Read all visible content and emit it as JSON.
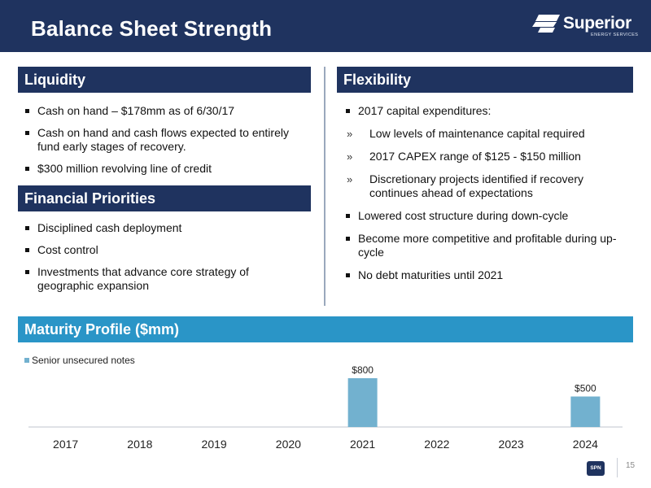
{
  "slide": {
    "title": "Balance Sheet Strength",
    "page_number": "15"
  },
  "logo": {
    "brand": "Superior",
    "tagline": "ENERGY SERVICES",
    "footer_mark": "SPN"
  },
  "colors": {
    "navy": "#1f335f",
    "accent_blue": "#2a95c7",
    "bar": "#72b1cf"
  },
  "liquidity": {
    "heading": "Liquidity",
    "items": [
      "Cash on hand – $178mm as of 6/30/17",
      "Cash on hand and cash flows expected to entirely fund early stages of recovery.",
      "$300 million revolving line of credit"
    ]
  },
  "priorities": {
    "heading": "Financial Priorities",
    "items": [
      "Disciplined cash deployment",
      "Cost control",
      "Investments that advance core strategy of geographic expansion"
    ]
  },
  "flexibility": {
    "heading": "Flexibility",
    "items": [
      "2017 capital expenditures:",
      "Low levels of maintenance capital required",
      "2017 CAPEX range of $125 - $150 million",
      "Discretionary projects identified if recovery continues ahead of expectations",
      "Lowered cost structure during down-cycle",
      "Become more competitive and profitable during up-cycle",
      "No debt maturities until 2021"
    ],
    "sub_marker": "»"
  },
  "maturity": {
    "heading": "Maturity Profile ($mm)"
  },
  "chart_data": {
    "type": "bar",
    "title": "Maturity Profile ($mm)",
    "xlabel": "",
    "ylabel": "",
    "categories": [
      "2017",
      "2018",
      "2019",
      "2020",
      "2021",
      "2022",
      "2023",
      "2024"
    ],
    "series": [
      {
        "name": "Senior unsecured notes",
        "values": [
          0,
          0,
          0,
          0,
          800,
          0,
          0,
          500
        ]
      }
    ],
    "data_labels": [
      "",
      "",
      "",
      "",
      "$800",
      "",
      "",
      "$500"
    ],
    "ylim": [
      0,
      800
    ],
    "grid": false,
    "legend": "top-left"
  }
}
